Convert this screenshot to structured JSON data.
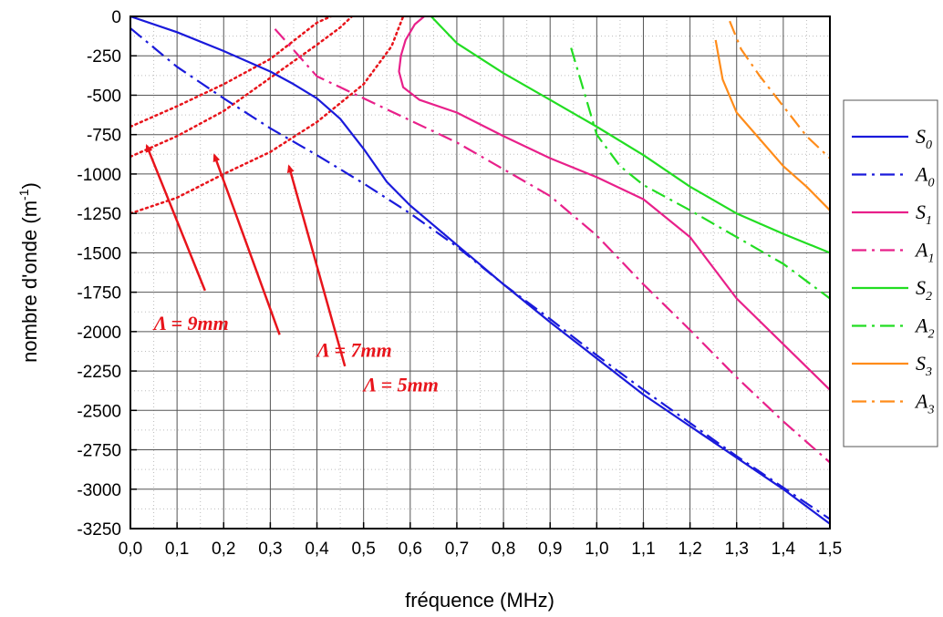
{
  "chart_data": {
    "type": "line",
    "xlabel": "fréquence (MHz)",
    "ylabel_main": "nombre d'onde (m",
    "ylabel_sup": "-1",
    "ylabel_end": ")",
    "xlim": [
      0,
      1.5
    ],
    "ylim": [
      -3250,
      0
    ],
    "grid": true,
    "legend_position": "right",
    "x_ticks": [
      0.0,
      0.1,
      0.2,
      0.3,
      0.4,
      0.5,
      0.6,
      0.7,
      0.8,
      0.9,
      1.0,
      1.1,
      1.2,
      1.3,
      1.4,
      1.5
    ],
    "x_tick_labels": [
      "0,0",
      "0,1",
      "0,2",
      "0,3",
      "0,4",
      "0,5",
      "0,6",
      "0,7",
      "0,8",
      "0,9",
      "1,0",
      "1,1",
      "1,2",
      "1,3",
      "1,4",
      "1,5"
    ],
    "y_ticks": [
      0,
      -250,
      -500,
      -750,
      -1000,
      -1250,
      -1500,
      -1750,
      -2000,
      -2250,
      -2500,
      -2750,
      -3000,
      -3250
    ],
    "y_tick_labels": [
      "0",
      "-250",
      "-500",
      "-750",
      "-1000",
      "-1250",
      "-1500",
      "-1750",
      "-2000",
      "-2250",
      "-2500",
      "-2750",
      "-3000",
      "-3250"
    ],
    "series": [
      {
        "name": "S",
        "sub": "0",
        "color": "#1a1adb",
        "dash": "solid",
        "points": [
          [
            0,
            0
          ],
          [
            0.1,
            -100
          ],
          [
            0.2,
            -220
          ],
          [
            0.3,
            -350
          ],
          [
            0.35,
            -430
          ],
          [
            0.4,
            -520
          ],
          [
            0.45,
            -650
          ],
          [
            0.5,
            -840
          ],
          [
            0.55,
            -1050
          ],
          [
            0.6,
            -1200
          ],
          [
            0.7,
            -1450
          ],
          [
            0.8,
            -1700
          ],
          [
            0.9,
            -1940
          ],
          [
            1.0,
            -2170
          ],
          [
            1.1,
            -2400
          ],
          [
            1.2,
            -2600
          ],
          [
            1.3,
            -2800
          ],
          [
            1.4,
            -3000
          ],
          [
            1.5,
            -3220
          ]
        ]
      },
      {
        "name": "A",
        "sub": "0",
        "color": "#1a1adb",
        "dash": "dashdot",
        "points": [
          [
            0,
            -75
          ],
          [
            0.1,
            -320
          ],
          [
            0.2,
            -520
          ],
          [
            0.3,
            -710
          ],
          [
            0.4,
            -880
          ],
          [
            0.5,
            -1060
          ],
          [
            0.6,
            -1250
          ],
          [
            0.7,
            -1460
          ],
          [
            0.8,
            -1700
          ],
          [
            0.9,
            -1920
          ],
          [
            1.0,
            -2150
          ],
          [
            1.1,
            -2370
          ],
          [
            1.2,
            -2580
          ],
          [
            1.3,
            -2790
          ],
          [
            1.4,
            -2990
          ],
          [
            1.5,
            -3190
          ]
        ]
      },
      {
        "name": "S",
        "sub": "1",
        "color": "#e8208a",
        "dash": "solid",
        "points": [
          [
            0.63,
            0
          ],
          [
            0.61,
            -50
          ],
          [
            0.59,
            -150
          ],
          [
            0.58,
            -250
          ],
          [
            0.576,
            -350
          ],
          [
            0.585,
            -450
          ],
          [
            0.62,
            -530
          ],
          [
            0.7,
            -610
          ],
          [
            0.8,
            -760
          ],
          [
            0.9,
            -900
          ],
          [
            1.0,
            -1020
          ],
          [
            1.1,
            -1160
          ],
          [
            1.2,
            -1400
          ],
          [
            1.3,
            -1790
          ],
          [
            1.4,
            -2080
          ],
          [
            1.5,
            -2370
          ]
        ]
      },
      {
        "name": "A",
        "sub": "1",
        "color": "#e8208a",
        "dash": "dashdot",
        "points": [
          [
            0.31,
            -80
          ],
          [
            0.4,
            -380
          ],
          [
            0.5,
            -520
          ],
          [
            0.6,
            -660
          ],
          [
            0.7,
            -800
          ],
          [
            0.8,
            -970
          ],
          [
            0.9,
            -1140
          ],
          [
            1.0,
            -1390
          ],
          [
            1.1,
            -1700
          ],
          [
            1.2,
            -1990
          ],
          [
            1.3,
            -2290
          ],
          [
            1.4,
            -2570
          ],
          [
            1.5,
            -2830
          ]
        ]
      },
      {
        "name": "S",
        "sub": "2",
        "color": "#22dd22",
        "dash": "solid",
        "points": [
          [
            0.645,
            0
          ],
          [
            0.7,
            -170
          ],
          [
            0.8,
            -360
          ],
          [
            0.9,
            -530
          ],
          [
            1.0,
            -700
          ],
          [
            1.1,
            -880
          ],
          [
            1.2,
            -1080
          ],
          [
            1.3,
            -1250
          ],
          [
            1.4,
            -1380
          ],
          [
            1.5,
            -1500
          ]
        ]
      },
      {
        "name": "A",
        "sub": "2",
        "color": "#22dd22",
        "dash": "dashdot",
        "points": [
          [
            0.945,
            -200
          ],
          [
            0.97,
            -450
          ],
          [
            1.0,
            -750
          ],
          [
            1.05,
            -950
          ],
          [
            1.1,
            -1070
          ],
          [
            1.2,
            -1230
          ],
          [
            1.3,
            -1400
          ],
          [
            1.4,
            -1570
          ],
          [
            1.5,
            -1790
          ]
        ]
      },
      {
        "name": "S",
        "sub": "3",
        "color": "#ff8c1a",
        "dash": "solid",
        "points": [
          [
            1.255,
            -150
          ],
          [
            1.27,
            -400
          ],
          [
            1.3,
            -610
          ],
          [
            1.35,
            -780
          ],
          [
            1.4,
            -950
          ],
          [
            1.45,
            -1080
          ],
          [
            1.5,
            -1230
          ]
        ]
      },
      {
        "name": "A",
        "sub": "3",
        "color": "#ff8c1a",
        "dash": "dashdot",
        "points": [
          [
            1.285,
            -30
          ],
          [
            1.31,
            -210
          ],
          [
            1.35,
            -380
          ],
          [
            1.4,
            -570
          ],
          [
            1.45,
            -760
          ],
          [
            1.5,
            -900
          ]
        ]
      }
    ],
    "dotted_lines": [
      {
        "color": "#e8141b",
        "points": [
          [
            0,
            -700
          ],
          [
            0.1,
            -570
          ],
          [
            0.2,
            -430
          ],
          [
            0.3,
            -270
          ],
          [
            0.4,
            -40
          ],
          [
            0.43,
            0
          ]
        ]
      },
      {
        "color": "#e8141b",
        "points": [
          [
            0,
            -890
          ],
          [
            0.1,
            -760
          ],
          [
            0.2,
            -600
          ],
          [
            0.3,
            -390
          ],
          [
            0.4,
            -180
          ],
          [
            0.45,
            -70
          ],
          [
            0.475,
            0
          ]
        ]
      },
      {
        "color": "#e8141b",
        "points": [
          [
            0,
            -1250
          ],
          [
            0.1,
            -1150
          ],
          [
            0.2,
            -1000
          ],
          [
            0.3,
            -860
          ],
          [
            0.4,
            -670
          ],
          [
            0.5,
            -430
          ],
          [
            0.56,
            -190
          ],
          [
            0.585,
            0
          ]
        ]
      }
    ],
    "annotations": [
      {
        "text": "Λ = 9mm",
        "label_at": [
          0.05,
          -1990
        ],
        "arrow_from": [
          0.16,
          -1740
        ],
        "arrow_to": [
          0.035,
          -820
        ]
      },
      {
        "text": "Λ = 7mm",
        "label_at": [
          0.4,
          -2160
        ],
        "arrow_from": [
          0.32,
          -2020
        ],
        "arrow_to": [
          0.18,
          -880
        ]
      },
      {
        "text": "Λ = 5mm",
        "label_at": [
          0.5,
          -2380
        ],
        "arrow_from": [
          0.46,
          -2220
        ],
        "arrow_to": [
          0.34,
          -950
        ]
      }
    ],
    "arrow_color": "#e8141b"
  }
}
